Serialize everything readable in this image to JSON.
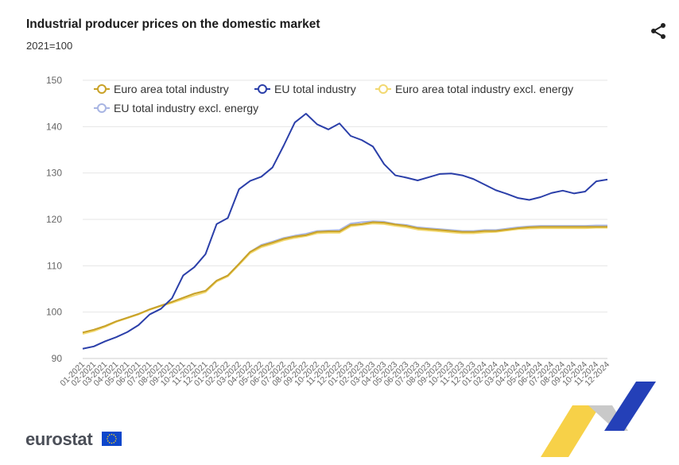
{
  "header": {
    "title": "Industrial producer prices on the domestic market",
    "subtitle": "2021=100"
  },
  "footer": {
    "brand": "eurostat"
  },
  "colors": {
    "euro_area": "#c9a227",
    "eu": "#2b3fa9",
    "euro_area_excl": "#f2d870",
    "eu_excl": "#a8b5e3",
    "grid": "#e6e6e6",
    "brand_blue": "#2440b8",
    "brand_yellow": "#f6c928"
  },
  "icons": {
    "share": "share-icon",
    "flag": "eu-flag-icon"
  },
  "chart_data": {
    "type": "line",
    "title": "Industrial producer prices on the domestic market",
    "ylabel": "2021=100",
    "xlabel": "",
    "ylim": [
      90,
      150
    ],
    "yticks": [
      90,
      100,
      110,
      120,
      130,
      140,
      150
    ],
    "grid": true,
    "legend_position": "top",
    "x": [
      "01-2021",
      "02-2021",
      "03-2021",
      "04-2021",
      "05-2021",
      "06-2021",
      "07-2021",
      "08-2021",
      "09-2021",
      "10-2021",
      "11-2021",
      "12-2021",
      "01-2022",
      "02-2022",
      "03-2022",
      "04-2022",
      "05-2022",
      "06-2022",
      "07-2022",
      "08-2022",
      "09-2022",
      "10-2022",
      "11-2022",
      "12-2022",
      "01-2023",
      "02-2023",
      "03-2023",
      "04-2023",
      "05-2023",
      "06-2023",
      "07-2023",
      "08-2023",
      "09-2023",
      "10-2023",
      "11-2023",
      "12-2023",
      "01-2024",
      "02-2024",
      "03-2024",
      "04-2024",
      "05-2024",
      "06-2024",
      "07-2024",
      "08-2024",
      "09-2024",
      "10-2024",
      "11-2024",
      "12-2024"
    ],
    "series": [
      {
        "name": "Euro area total industry",
        "color": "#c9a227",
        "values": [
          95.6,
          96.2,
          97.0,
          98.0,
          98.8,
          99.6,
          100.6,
          101.4,
          102.2,
          103.1,
          104.0,
          104.6,
          106.8,
          107.9,
          110.4,
          113.0,
          114.3,
          115.0,
          115.8,
          116.3,
          116.6,
          117.3,
          117.4,
          117.4,
          118.8,
          119.0,
          119.4,
          119.3,
          118.9,
          118.6,
          118.1,
          117.9,
          117.7,
          117.5,
          117.3,
          117.3,
          117.5,
          117.5,
          117.8,
          118.1,
          118.3,
          118.4,
          118.4,
          118.4,
          118.4,
          118.4,
          118.4,
          118.4
        ]
      },
      {
        "name": "EU total industry",
        "color": "#2b3fa9",
        "values": [
          92.1,
          92.6,
          93.7,
          94.6,
          95.7,
          97.2,
          99.5,
          100.7,
          103.0,
          107.9,
          109.7,
          112.5,
          119.0,
          120.3,
          126.5,
          128.3,
          129.2,
          131.2,
          135.9,
          140.9,
          142.8,
          140.5,
          139.4,
          140.7,
          138.0,
          137.1,
          135.7,
          131.9,
          129.5,
          129.0,
          128.4,
          129.1,
          129.8,
          129.9,
          129.5,
          128.7,
          127.5,
          126.3,
          125.5,
          124.6,
          124.2,
          124.8,
          125.7,
          126.2,
          125.6,
          126.0,
          128.2,
          128.6
        ]
      },
      {
        "name": "Euro area total industry excl. energy",
        "color": "#f2d870",
        "values": [
          95.3,
          95.9,
          96.8,
          97.9,
          98.7,
          99.5,
          100.5,
          101.3,
          102.0,
          102.8,
          103.6,
          104.3,
          106.6,
          107.7,
          110.2,
          112.7,
          114.0,
          114.7,
          115.5,
          116.0,
          116.4,
          117.0,
          117.1,
          117.1,
          118.5,
          118.8,
          119.1,
          119.0,
          118.6,
          118.3,
          117.8,
          117.6,
          117.4,
          117.2,
          117.0,
          117.0,
          117.2,
          117.3,
          117.6,
          117.9,
          118.0,
          118.1,
          118.1,
          118.1,
          118.1,
          118.1,
          118.2,
          118.2
        ]
      },
      {
        "name": "EU total industry excl. energy",
        "color": "#a8b5e3",
        "values": [
          95.6,
          96.2,
          97.0,
          98.0,
          98.8,
          99.6,
          100.6,
          101.4,
          102.2,
          103.1,
          104.0,
          104.6,
          106.8,
          107.9,
          110.4,
          113.0,
          114.5,
          115.2,
          116.0,
          116.5,
          116.9,
          117.5,
          117.6,
          117.7,
          119.1,
          119.4,
          119.6,
          119.5,
          119.0,
          118.8,
          118.3,
          118.1,
          117.9,
          117.7,
          117.5,
          117.5,
          117.7,
          117.7,
          118.0,
          118.3,
          118.5,
          118.6,
          118.6,
          118.6,
          118.6,
          118.6,
          118.7,
          118.7
        ]
      }
    ]
  }
}
